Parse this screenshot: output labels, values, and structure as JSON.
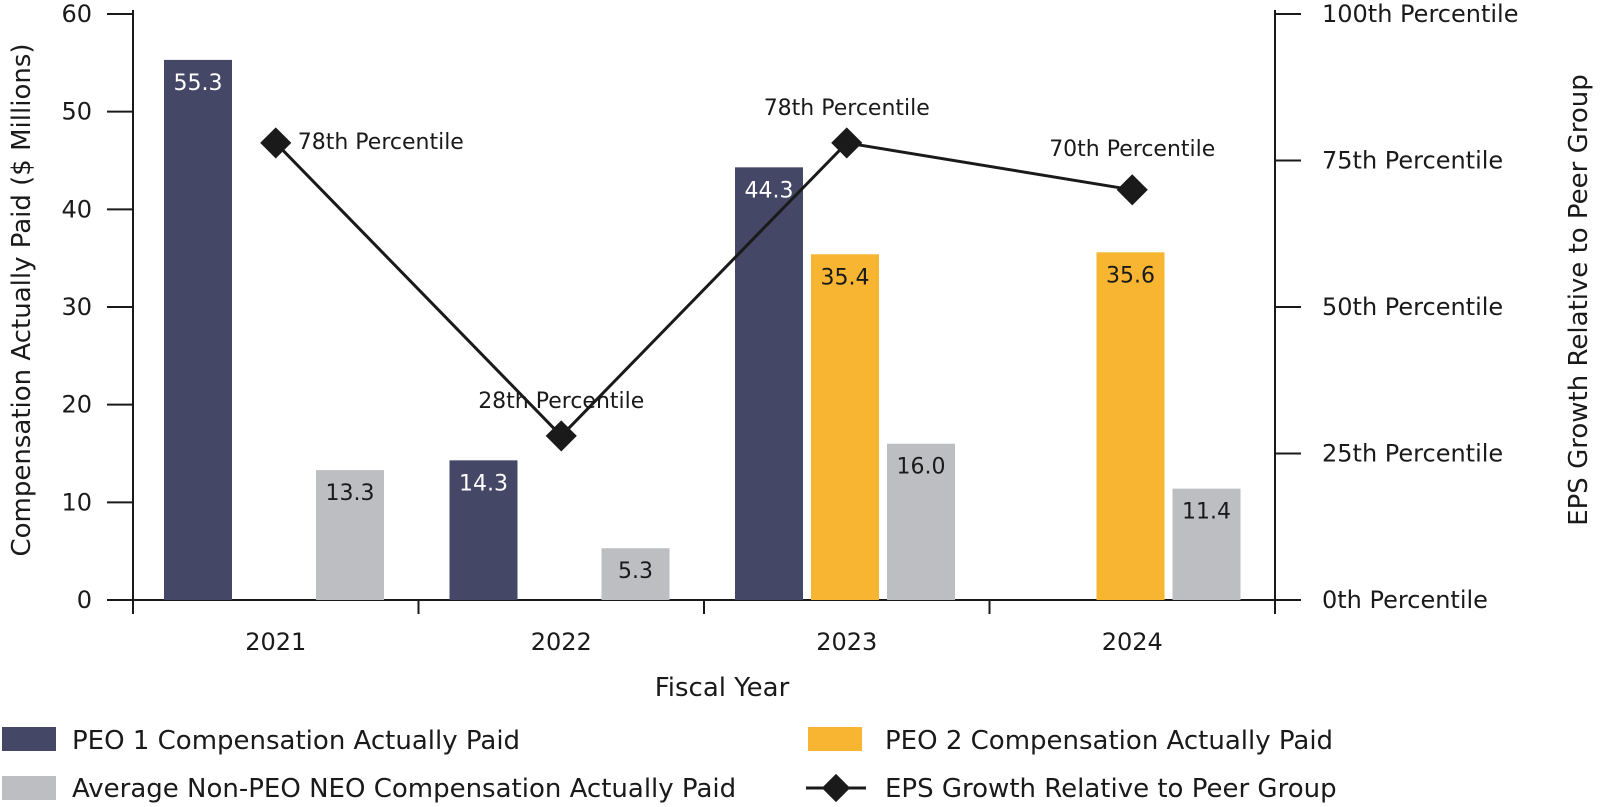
{
  "chart_data": {
    "type": "bar",
    "categories": [
      "2021",
      "2022",
      "2023",
      "2024"
    ],
    "xlabel": "Fiscal Year",
    "ylabel": "Compensation Actually Paid ($ Millions)",
    "ylabel_right": "EPS Growth Relative to Peer Group",
    "ylim": [
      0,
      60
    ],
    "yticks": [
      "0",
      "10",
      "20",
      "30",
      "40",
      "50",
      "60"
    ],
    "y2lim": [
      0,
      100
    ],
    "y2ticks": [
      "0th Percentile",
      "25th Percentile",
      "50th Percentile",
      "75th Percentile",
      "100th Percentile"
    ],
    "series": [
      {
        "name": "PEO 1 Compensation Actually Paid",
        "type": "bar",
        "color": "#454766",
        "values": [
          55.3,
          14.3,
          44.3,
          null
        ],
        "labels": [
          "55.3",
          "14.3",
          "44.3",
          null
        ]
      },
      {
        "name": "PEO 2 Compensation Actually Paid",
        "type": "bar",
        "color": "#f7b532",
        "values": [
          null,
          null,
          35.4,
          35.6
        ],
        "labels": [
          null,
          null,
          "35.4",
          "35.6"
        ]
      },
      {
        "name": "Average Non-PEO NEO Compensation Actually Paid",
        "type": "bar",
        "color": "#bdbec1",
        "values": [
          13.3,
          5.3,
          16.0,
          11.4
        ],
        "labels": [
          "13.3",
          "5.3",
          "16.0",
          "11.4"
        ]
      },
      {
        "name": "EPS Growth Relative to Peer Group",
        "type": "line",
        "axis": "right",
        "color": "#1a1a1a",
        "values": [
          78,
          28,
          78,
          70
        ],
        "labels": [
          "78th Percentile",
          "28th Percentile",
          "78th Percentile",
          "70th Percentile"
        ]
      }
    ],
    "legend": {
      "position": "bottom",
      "items": [
        "PEO 1 Compensation Actually Paid",
        "PEO 2 Compensation Actually Paid",
        "Average Non-PEO NEO Compensation Actually Paid",
        "EPS Growth Relative to Peer Group"
      ]
    },
    "grid": false
  }
}
